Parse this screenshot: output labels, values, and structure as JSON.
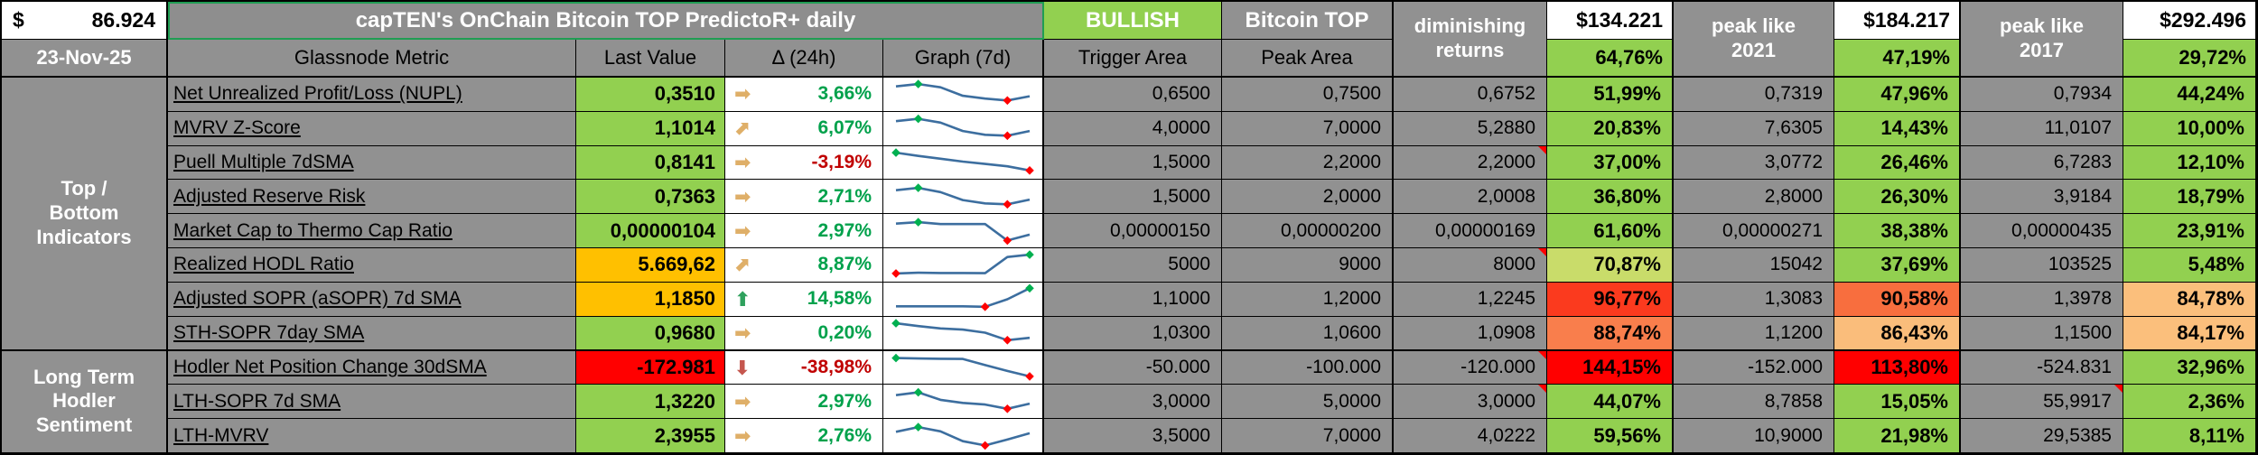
{
  "header": {
    "price": {
      "currency": "$",
      "value": "86.924"
    },
    "date": "23-Nov-25",
    "title": "capTEN's OnChain Bitcoin TOP PredictoR+ daily",
    "status": "BULLISH",
    "top_label": "Bitcoin TOP",
    "columns": {
      "metric": "Glassnode Metric",
      "last_value": "Last Value",
      "delta": "Δ (24h)",
      "graph": "Graph (7d)",
      "trigger": "Trigger Area",
      "peak": "Peak Area"
    },
    "scenarios": [
      {
        "label": "diminishing returns",
        "price": "$134.221",
        "pct": "64,76%"
      },
      {
        "label": "peak like 2021",
        "price": "$184.217",
        "pct": "47,19%"
      },
      {
        "label": "peak like 2017",
        "price": "$292.496",
        "pct": "29,72%"
      }
    ]
  },
  "groups": [
    {
      "label": "Top / Bottom Indicators"
    },
    {
      "label": "Long Term Hodler Sentiment"
    }
  ],
  "colors": {
    "green": "#92D050",
    "amber": "#FFC000",
    "red": "#FF0000",
    "spark_line": "#3C6E9F",
    "spark_hi": "#00B050",
    "spark_lo": "#FF0000",
    "status_bg": "#92D050"
  },
  "rows": [
    {
      "metric": "Net Unrealized Profit/Loss (NUPL)",
      "last_value": "0,3510",
      "last_bg": "green",
      "delta": {
        "icon": "right",
        "value": "3,66%",
        "dir": "up"
      },
      "spark": {
        "points": [
          0.82,
          0.92,
          0.78,
          0.42,
          0.3,
          0.22,
          0.4
        ],
        "hi": 1,
        "lo": 5
      },
      "trigger": "0,6500",
      "peak": "0,7500",
      "cells": [
        {
          "value": "0,6752",
          "pct": "51,99%",
          "bg": "#92D050",
          "note": false
        },
        {
          "value": "0,7319",
          "pct": "47,96%",
          "bg": "#92D050",
          "note": false
        },
        {
          "value": "0,7934",
          "pct": "44,24%",
          "bg": "#92D050",
          "note": false
        }
      ]
    },
    {
      "metric": "MVRV Z-Score",
      "last_value": "1,1014",
      "last_bg": "green",
      "delta": {
        "icon": "ne",
        "value": "6,07%",
        "dir": "up"
      },
      "spark": {
        "points": [
          0.8,
          0.9,
          0.74,
          0.38,
          0.22,
          0.18,
          0.38
        ],
        "hi": 1,
        "lo": 5
      },
      "trigger": "4,0000",
      "peak": "7,0000",
      "cells": [
        {
          "value": "5,2880",
          "pct": "20,83%",
          "bg": "#92D050",
          "note": false
        },
        {
          "value": "7,6305",
          "pct": "14,43%",
          "bg": "#92D050",
          "note": false
        },
        {
          "value": "11,0107",
          "pct": "10,00%",
          "bg": "#92D050",
          "note": false
        }
      ]
    },
    {
      "metric": "Puell Multiple 7dSMA",
      "last_value": "0,8141",
      "last_bg": "green",
      "delta": {
        "icon": "right",
        "value": "-3,19%",
        "dir": "down"
      },
      "spark": {
        "points": [
          0.92,
          0.78,
          0.66,
          0.54,
          0.44,
          0.34,
          0.16
        ],
        "hi": 0,
        "lo": 6
      },
      "trigger": "1,5000",
      "peak": "2,2000",
      "cells": [
        {
          "value": "2,2000",
          "pct": "37,00%",
          "bg": "#92D050",
          "note": true
        },
        {
          "value": "3,0772",
          "pct": "26,46%",
          "bg": "#92D050",
          "note": false
        },
        {
          "value": "6,7283",
          "pct": "12,10%",
          "bg": "#92D050",
          "note": false
        }
      ]
    },
    {
      "metric": "Adjusted Reserve Risk",
      "last_value": "0,7363",
      "last_bg": "green",
      "delta": {
        "icon": "right",
        "value": "2,71%",
        "dir": "up"
      },
      "spark": {
        "points": [
          0.78,
          0.88,
          0.7,
          0.36,
          0.22,
          0.18,
          0.38
        ],
        "hi": 1,
        "lo": 5
      },
      "trigger": "1,5000",
      "peak": "2,0000",
      "cells": [
        {
          "value": "2,0008",
          "pct": "36,80%",
          "bg": "#92D050",
          "note": false
        },
        {
          "value": "2,8000",
          "pct": "26,30%",
          "bg": "#92D050",
          "note": false
        },
        {
          "value": "3,9184",
          "pct": "18,79%",
          "bg": "#92D050",
          "note": false
        }
      ]
    },
    {
      "metric": "Market Cap to Thermo Cap Ratio",
      "last_value": "0,00000104",
      "last_bg": "green",
      "delta": {
        "icon": "right",
        "value": "2,97%",
        "dir": "up"
      },
      "spark": {
        "points": [
          0.82,
          0.88,
          0.8,
          0.8,
          0.8,
          0.1,
          0.35
        ],
        "hi": 1,
        "lo": 5
      },
      "trigger": "0,00000150",
      "peak": "0,00000200",
      "cells": [
        {
          "value": "0,00000169",
          "pct": "61,60%",
          "bg": "#92D050",
          "note": false
        },
        {
          "value": "0,00000271",
          "pct": "38,38%",
          "bg": "#92D050",
          "note": false
        },
        {
          "value": "0,00000435",
          "pct": "23,91%",
          "bg": "#92D050",
          "note": false
        }
      ]
    },
    {
      "metric": "Realized HODL Ratio",
      "last_value": "5.669,62",
      "last_bg": "amber",
      "delta": {
        "icon": "ne",
        "value": "8,87%",
        "dir": "up"
      },
      "spark": {
        "points": [
          0.12,
          0.15,
          0.14,
          0.14,
          0.13,
          0.82,
          0.92
        ],
        "hi": 6,
        "lo": 0
      },
      "trigger": "5000",
      "peak": "9000",
      "cells": [
        {
          "value": "8000",
          "pct": "70,87%",
          "bg": "#C9DC6A",
          "note": true
        },
        {
          "value": "15042",
          "pct": "37,69%",
          "bg": "#92D050",
          "note": false
        },
        {
          "value": "103525",
          "pct": "5,48%",
          "bg": "#92D050",
          "note": false
        }
      ]
    },
    {
      "metric": "Adjusted SOPR (aSOPR) 7d SMA",
      "last_value": "1,1850",
      "last_bg": "amber",
      "delta": {
        "icon": "up",
        "value": "14,58%",
        "dir": "up"
      },
      "spark": {
        "points": [
          0.18,
          0.18,
          0.18,
          0.18,
          0.16,
          0.48,
          0.95
        ],
        "hi": 6,
        "lo": 4
      },
      "trigger": "1,1000",
      "peak": "1,2000",
      "cells": [
        {
          "value": "1,2245",
          "pct": "96,77%",
          "bg": "#FB3A1E",
          "note": false
        },
        {
          "value": "1,3083",
          "pct": "90,58%",
          "bg": "#F86E3E",
          "note": false
        },
        {
          "value": "1,3978",
          "pct": "84,78%",
          "bg": "#FBBF7C",
          "note": false
        }
      ]
    },
    {
      "metric": "STH-SOPR 7day SMA",
      "last_value": "0,9680",
      "last_bg": "green",
      "delta": {
        "icon": "right",
        "value": "0,20%",
        "dir": "up"
      },
      "spark": {
        "points": [
          0.92,
          0.8,
          0.7,
          0.65,
          0.52,
          0.2,
          0.3
        ],
        "hi": 0,
        "lo": 5
      },
      "trigger": "1,0300",
      "peak": "1,0600",
      "cells": [
        {
          "value": "1,0908",
          "pct": "88,74%",
          "bg": "#F97E4C",
          "note": false
        },
        {
          "value": "1,1200",
          "pct": "86,43%",
          "bg": "#FABD7B",
          "note": false
        },
        {
          "value": "1,1500",
          "pct": "84,17%",
          "bg": "#FBBF7C",
          "note": false
        }
      ]
    },
    {
      "metric": "Hodler Net Position Change 30dSMA",
      "last_value": "-172.981",
      "last_bg": "red",
      "delta": {
        "icon": "down",
        "value": "-38,98%",
        "dir": "down"
      },
      "spark": {
        "points": [
          0.9,
          0.88,
          0.87,
          0.86,
          0.6,
          0.35,
          0.12
        ],
        "hi": 0,
        "lo": 6
      },
      "trigger": "-50.000",
      "peak": "-100.000",
      "cells": [
        {
          "value": "-120.000",
          "pct": "144,15%",
          "bg": "#FF0000",
          "note": true
        },
        {
          "value": "-152.000",
          "pct": "113,80%",
          "bg": "#FF0000",
          "note": false
        },
        {
          "value": "-524.831",
          "pct": "32,96%",
          "bg": "#92D050",
          "note": false
        }
      ]
    },
    {
      "metric": "LTH-SOPR 7d SMA",
      "last_value": "1,3220",
      "last_bg": "green",
      "delta": {
        "icon": "right",
        "value": "2,97%",
        "dir": "up"
      },
      "spark": {
        "points": [
          0.78,
          0.9,
          0.58,
          0.45,
          0.38,
          0.2,
          0.42
        ],
        "hi": 1,
        "lo": 5
      },
      "trigger": "3,0000",
      "peak": "5,0000",
      "cells": [
        {
          "value": "3,0000",
          "pct": "44,07%",
          "bg": "#92D050",
          "note": true
        },
        {
          "value": "8,7858",
          "pct": "15,05%",
          "bg": "#92D050",
          "note": false
        },
        {
          "value": "55,9917",
          "pct": "2,36%",
          "bg": "#92D050",
          "note": true
        }
      ]
    },
    {
      "metric": "LTH-MVRV",
      "last_value": "2,3955",
      "last_bg": "green",
      "delta": {
        "icon": "right",
        "value": "2,76%",
        "dir": "up"
      },
      "spark": {
        "points": [
          0.68,
          0.88,
          0.7,
          0.28,
          0.1,
          0.35,
          0.62
        ],
        "hi": 1,
        "lo": 4
      },
      "trigger": "3,5000",
      "peak": "7,0000",
      "cells": [
        {
          "value": "4,0222",
          "pct": "59,56%",
          "bg": "#92D050",
          "note": false
        },
        {
          "value": "10,9000",
          "pct": "21,98%",
          "bg": "#92D050",
          "note": false
        },
        {
          "value": "29,5385",
          "pct": "8,11%",
          "bg": "#92D050",
          "note": false
        }
      ]
    }
  ]
}
